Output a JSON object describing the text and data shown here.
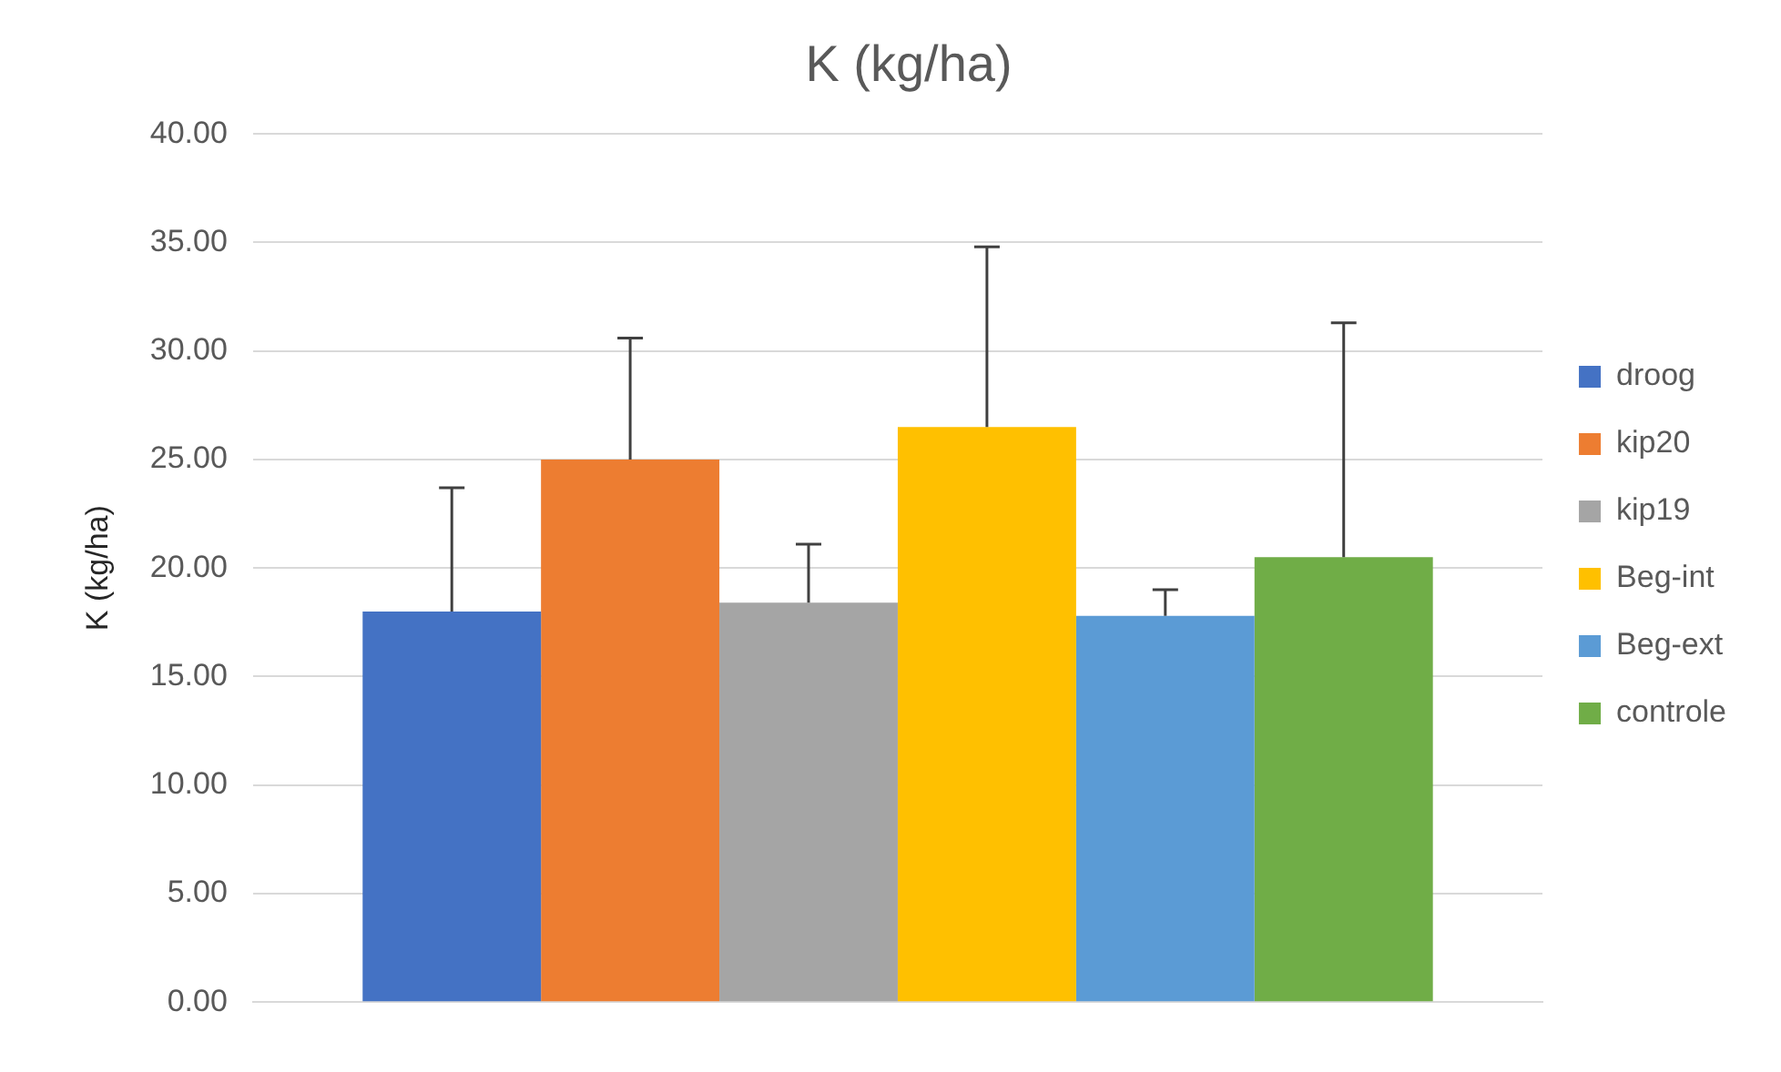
{
  "chart_data": {
    "type": "bar",
    "title": "K (kg/ha)",
    "ylabel": "K (kg/ha)",
    "categories": [
      null
    ],
    "series": [
      {
        "name": "droog",
        "color": "#4472c4",
        "values": [
          18.0
        ],
        "errors": [
          [
            18.0,
            23.7
          ]
        ]
      },
      {
        "name": "kip20",
        "color": "#ed7d31",
        "values": [
          25.0
        ],
        "errors": [
          [
            25.0,
            30.6
          ]
        ]
      },
      {
        "name": "kip19",
        "color": "#a5a5a5",
        "values": [
          18.4
        ],
        "errors": [
          [
            18.4,
            21.1
          ]
        ]
      },
      {
        "name": "Beg-int",
        "color": "#ffc000",
        "values": [
          26.5
        ],
        "errors": [
          [
            26.5,
            34.8
          ]
        ]
      },
      {
        "name": "Beg-ext",
        "color": "#5b9bd5",
        "values": [
          17.8
        ],
        "errors": [
          [
            17.8,
            19.0
          ]
        ]
      },
      {
        "name": "controle",
        "color": "#70ad47",
        "values": [
          20.5
        ],
        "errors": [
          [
            20.5,
            31.3
          ]
        ]
      }
    ],
    "ylim": [
      0,
      40
    ],
    "yticks": [
      {
        "value": 0,
        "label": "0.00"
      },
      {
        "value": 5,
        "label": "5.00"
      },
      {
        "value": 10,
        "label": "10.00"
      },
      {
        "value": 15,
        "label": "15.00"
      },
      {
        "value": 20,
        "label": "20.00"
      },
      {
        "value": 25,
        "label": "25.00"
      },
      {
        "value": 30,
        "label": "30.00"
      },
      {
        "value": 35,
        "label": "35.00"
      },
      {
        "value": 40,
        "label": "40.00"
      }
    ],
    "grid": "y",
    "legend": "right"
  }
}
